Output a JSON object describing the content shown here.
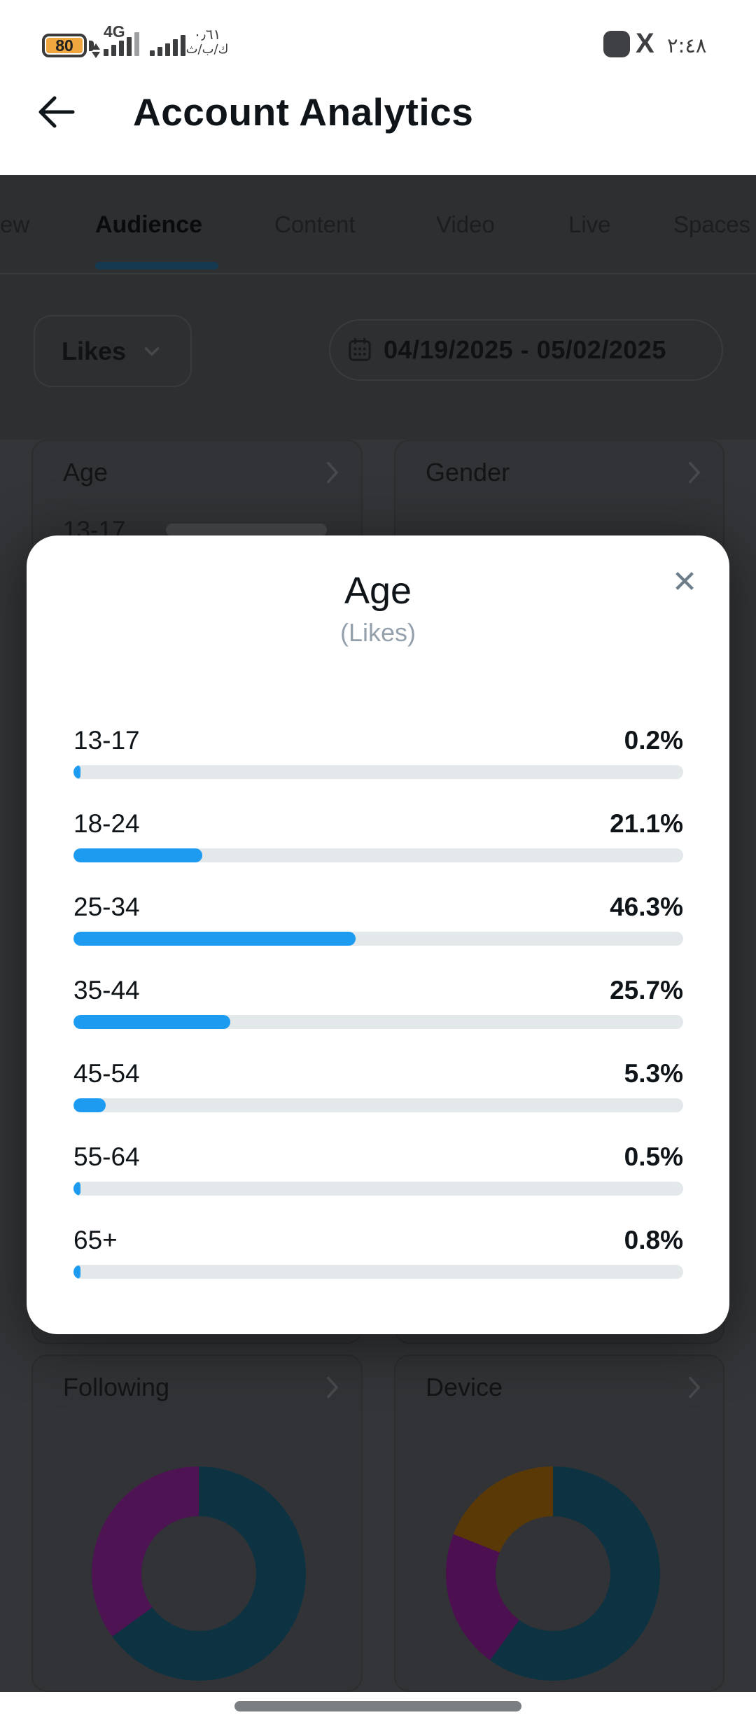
{
  "status_bar": {
    "battery_level": "80",
    "network_type": "4G",
    "net_speed_value": "٠٫٦١",
    "net_speed_unit": "ك/ب/ث",
    "x_app_label": "X",
    "time": "٢:٤٨"
  },
  "header": {
    "title": "Account Analytics"
  },
  "tabs": {
    "items": [
      {
        "label": "ew",
        "active": false
      },
      {
        "label": "Audience",
        "active": true
      },
      {
        "label": "Content",
        "active": false
      },
      {
        "label": "Video",
        "active": false
      },
      {
        "label": "Live",
        "active": false
      },
      {
        "label": "Spaces",
        "active": false
      }
    ]
  },
  "filters": {
    "metric": "Likes",
    "date_range": "04/19/2025 - 05/02/2025"
  },
  "background_cards": {
    "age": {
      "title": "Age",
      "preview_label": "13-17"
    },
    "gender": {
      "title": "Gender"
    },
    "following": {
      "title": "Following",
      "donut": {
        "segments": [
          {
            "color": "#0d3342",
            "pct": 65
          },
          {
            "color": "#4d1353",
            "pct": 35
          }
        ]
      }
    },
    "device": {
      "title": "Device",
      "donut": {
        "segments": [
          {
            "color": "#0d3342",
            "pct": 60
          },
          {
            "color": "#4c1050",
            "pct": 21
          },
          {
            "color": "#5a3906",
            "pct": 19
          }
        ]
      }
    }
  },
  "modal": {
    "title": "Age",
    "subtitle": "(Likes)",
    "close_icon": "✕",
    "rows": [
      {
        "label": "13-17",
        "value": "0.2%",
        "pct": 0.2
      },
      {
        "label": "18-24",
        "value": "21.1%",
        "pct": 21.1
      },
      {
        "label": "25-34",
        "value": "46.3%",
        "pct": 46.3
      },
      {
        "label": "35-44",
        "value": "25.7%",
        "pct": 25.7
      },
      {
        "label": "45-54",
        "value": "5.3%",
        "pct": 5.3
      },
      {
        "label": "55-64",
        "value": "0.5%",
        "pct": 0.5
      },
      {
        "label": "65+",
        "value": "0.8%",
        "pct": 0.8
      }
    ]
  },
  "colors": {
    "accent_blue": "#1d9bf0",
    "bar_track": "#e3e8eb",
    "battery_fill": "#f0a63e",
    "scrim_bg": "#2e2f30",
    "dim_page_bg": "#343538",
    "card_bg": "#323336",
    "tab_underline": "#15394f"
  },
  "chart_data": [
    {
      "type": "bar",
      "title": "Age",
      "subtitle": "(Likes)",
      "orientation": "horizontal",
      "categories": [
        "13-17",
        "18-24",
        "25-34",
        "35-44",
        "45-54",
        "55-64",
        "65+"
      ],
      "values": [
        0.2,
        21.1,
        46.3,
        25.7,
        5.3,
        0.5,
        0.8
      ],
      "unit": "%",
      "bar_color": "#1d9bf0",
      "xlim": [
        0,
        100
      ]
    },
    {
      "type": "pie",
      "title": "Following",
      "donut": true,
      "labels_visible": false,
      "values": [
        65,
        35
      ],
      "colors": [
        "#0d3342",
        "#4d1353"
      ]
    },
    {
      "type": "pie",
      "title": "Device",
      "donut": true,
      "labels_visible": false,
      "values": [
        60,
        21,
        19
      ],
      "colors": [
        "#0d3342",
        "#4c1050",
        "#5a3906"
      ]
    }
  ]
}
